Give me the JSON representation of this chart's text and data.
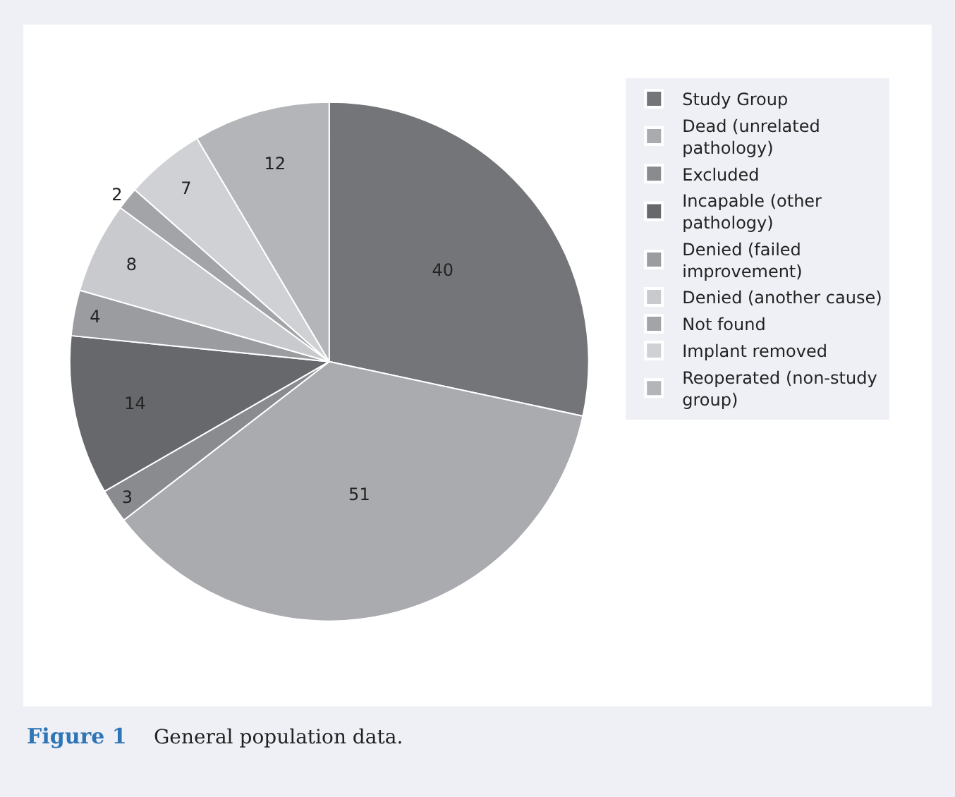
{
  "chart_data": {
    "type": "pie",
    "categories": [
      "Study Group",
      "Dead (unrelated pathology)",
      "Excluded",
      "Incapable (other pathology)",
      "Denied (failed improvement)",
      "Denied (another cause)",
      "Not found",
      "Implant removed",
      "Reoperated (non-study group)"
    ],
    "values": [
      40,
      51,
      3,
      14,
      4,
      8,
      2,
      7,
      12
    ],
    "colors": [
      "#747579",
      "#aaabaf",
      "#8a8b8f",
      "#67686b",
      "#9b9ca0",
      "#c9cacd",
      "#a3a4a8",
      "#d0d1d4",
      "#b4b5b9"
    ],
    "data_labels": true,
    "legend": "right",
    "annotations": [
      "Figure 1",
      "General population data."
    ]
  }
}
